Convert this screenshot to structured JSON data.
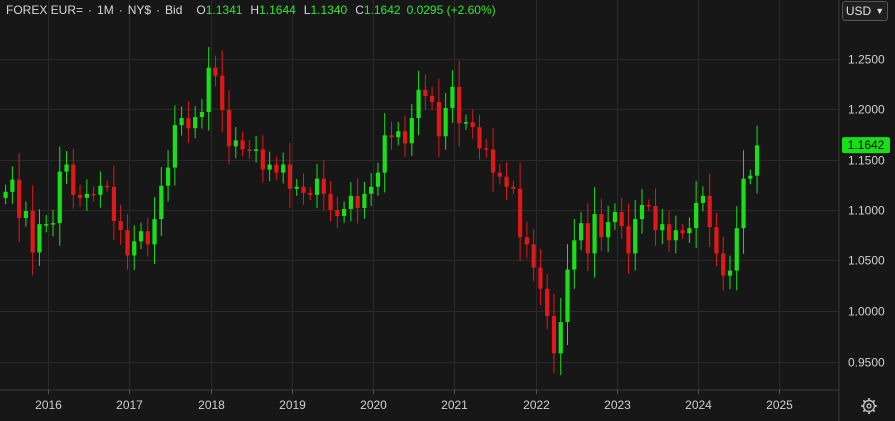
{
  "header": {
    "symbol": "FOREX EUR=",
    "sep1": "·",
    "interval": "1M",
    "sep2": "·",
    "venue": "NY$",
    "sep3": "·",
    "side": "Bid",
    "open_label": "O",
    "open_value": "1.1341",
    "high_label": "H",
    "high_value": "1.1644",
    "low_label": "L",
    "low_value": "1.1340",
    "close_label": "C",
    "close_value": "1.1642",
    "change": "0.0295 (+2.60%)"
  },
  "currency_button": {
    "label": "USD",
    "icon": "chevron-down-icon"
  },
  "settings_icon": "gear-icon",
  "colors": {
    "background": "#171717",
    "grid": "#2a2a2a",
    "up": "#18e018",
    "down": "#e01818",
    "last_price_tag": "#18e018"
  },
  "chart_data": {
    "type": "candlestick",
    "title": "",
    "xlabel": "",
    "ylabel": "",
    "ylim": [
      0.925,
      1.285
    ],
    "y_ticks": [
      "1.2500",
      "1.2000",
      "1.1500",
      "1.1000",
      "1.0500",
      "1.0000",
      "0.9500"
    ],
    "x_ticks": [
      "2016",
      "2017",
      "2018",
      "2019",
      "2020",
      "2021",
      "2022",
      "2023",
      "2024",
      "2025"
    ],
    "last_price": "1.1642",
    "grid": true,
    "start_month": "2015-07",
    "closes": [
      1.118,
      1.13,
      1.092,
      1.099,
      1.058,
      1.086,
      1.086,
      1.087,
      1.138,
      1.145,
      1.115,
      1.112,
      1.116,
      1.115,
      1.124,
      1.123,
      1.089,
      1.08,
      1.055,
      1.069,
      1.079,
      1.066,
      1.091,
      1.124,
      1.142,
      1.184,
      1.191,
      1.181,
      1.192,
      1.197,
      1.241,
      1.233,
      1.199,
      1.163,
      1.169,
      1.16,
      1.159,
      1.16,
      1.14,
      1.145,
      1.137,
      1.145,
      1.121,
      1.123,
      1.117,
      1.115,
      1.131,
      1.116,
      1.1,
      1.094,
      1.101,
      1.114,
      1.102,
      1.116,
      1.123,
      1.137,
      1.174,
      1.172,
      1.178,
      1.166,
      1.191,
      1.219,
      1.213,
      1.207,
      1.173,
      1.201,
      1.222,
      1.186,
      1.187,
      1.182,
      1.161,
      1.16,
      1.137,
      1.133,
      1.123,
      1.121,
      1.073,
      1.066,
      1.043,
      1.022,
      0.995,
      0.958,
      0.989,
      1.041,
      1.07,
      1.087,
      1.057,
      1.096,
      1.073,
      1.088,
      1.098,
      1.084,
      1.057,
      1.091,
      1.105,
      1.104,
      1.08,
      1.086,
      1.07,
      1.08,
      1.077,
      1.082,
      1.107,
      1.114,
      1.083,
      1.057,
      1.035,
      1.04,
      1.082,
      1.131,
      1.134,
      1.164
    ]
  }
}
